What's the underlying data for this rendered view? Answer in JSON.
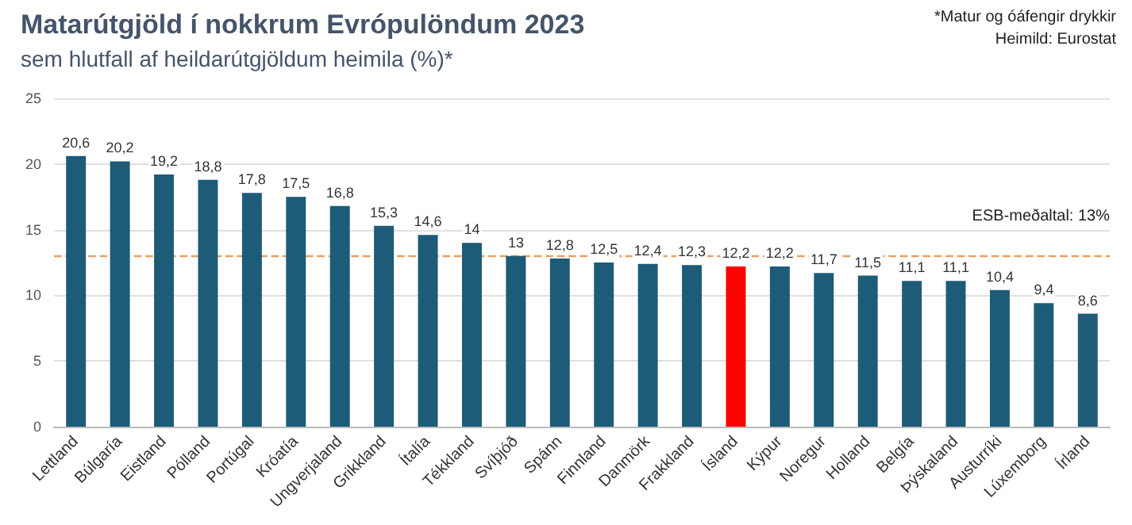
{
  "chart_data": {
    "type": "bar",
    "title": "Matarútgjöld í nokkrum Evrópulöndum 2023",
    "subtitle": "sem hlutfall af heildarútgjöldum heimila (%)*",
    "annotations": [
      "*Matur og óáfengir drykkir",
      "Heimild: Eurostat"
    ],
    "categories": [
      "Lettland",
      "Búlgaría",
      "Eistland",
      "Pólland",
      "Portúgal",
      "Króatía",
      "Ungverjaland",
      "Grikkland",
      "Ítalía",
      "Tékkland",
      "Svíþjóð",
      "Spánn",
      "Finnland",
      "Danmörk",
      "Frakkland",
      "Ísland",
      "Kýpur",
      "Noregur",
      "Holland",
      "Belgía",
      "Þýskaland",
      "Austurríki",
      "Lúxemborg",
      "Írland"
    ],
    "values": [
      20.6,
      20.2,
      19.2,
      18.8,
      17.8,
      17.5,
      16.8,
      15.3,
      14.6,
      14,
      13,
      12.8,
      12.5,
      12.4,
      12.3,
      12.2,
      12.2,
      11.7,
      11.5,
      11.1,
      11.1,
      10.4,
      9.4,
      8.6
    ],
    "value_labels": [
      "20,6",
      "20,2",
      "19,2",
      "18,8",
      "17,8",
      "17,5",
      "16,8",
      "15,3",
      "14,6",
      "14",
      "13",
      "12,8",
      "12,5",
      "12,4",
      "12,3",
      "12,2",
      "12,2",
      "11,7",
      "11,5",
      "11,1",
      "11,1",
      "10,4",
      "9,4",
      "8,6"
    ],
    "colors": [
      "#1d5b79",
      "#1d5b79",
      "#1d5b79",
      "#1d5b79",
      "#1d5b79",
      "#1d5b79",
      "#1d5b79",
      "#1d5b79",
      "#1d5b79",
      "#1d5b79",
      "#1d5b79",
      "#1d5b79",
      "#1d5b79",
      "#1d5b79",
      "#1d5b79",
      "#ff0000",
      "#1d5b79",
      "#1d5b79",
      "#1d5b79",
      "#1d5b79",
      "#1d5b79",
      "#1d5b79",
      "#1d5b79",
      "#1d5b79"
    ],
    "ylim": [
      0,
      25
    ],
    "yticks": [
      0,
      5,
      10,
      15,
      20,
      25
    ],
    "grid": "y",
    "ref_lines": [
      {
        "axis": "y",
        "value": 13,
        "label": "ESB-meðaltal: 13%",
        "color": "#e8a060",
        "line_style": "dashed"
      }
    ]
  }
}
